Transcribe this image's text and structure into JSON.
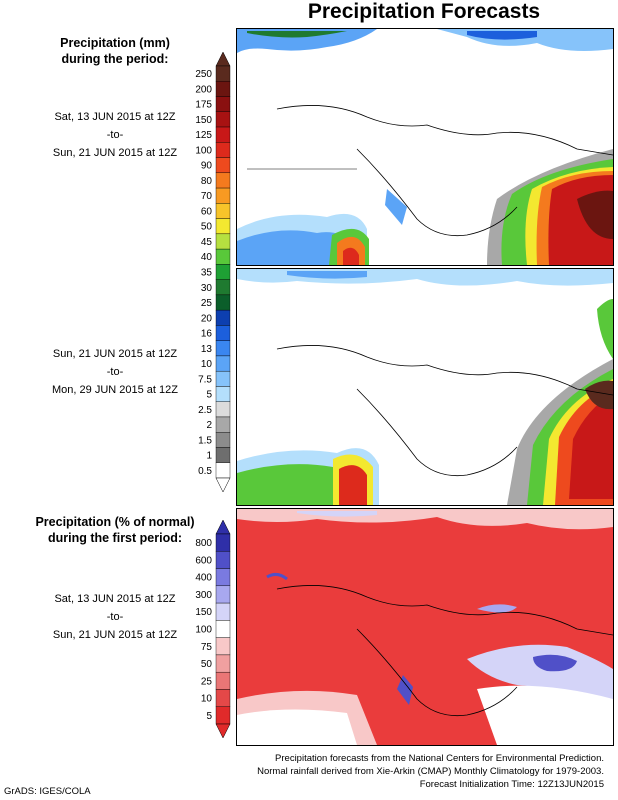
{
  "title": "Precipitation Forecasts",
  "top_heading": [
    "Precipitation (mm)",
    "during the period:"
  ],
  "period1": [
    "Sat, 13 JUN 2015 at 12Z",
    "-to-",
    "Sun, 21 JUN 2015 at 12Z"
  ],
  "period2": [
    "Sun, 21 JUN 2015 at 12Z",
    "-to-",
    "Mon, 29 JUN 2015 at 12Z"
  ],
  "bottom_heading": [
    "Precipitation (% of normal)",
    "during the first period:"
  ],
  "period3": [
    "Sat, 13 JUN 2015 at 12Z",
    "-to-",
    "Sun, 21 JUN 2015 at 12Z"
  ],
  "mm_scale": {
    "labels": [
      "250",
      "200",
      "175",
      "150",
      "125",
      "100",
      "90",
      "80",
      "70",
      "60",
      "50",
      "45",
      "40",
      "35",
      "30",
      "25",
      "20",
      "16",
      "13",
      "10",
      "7.5",
      "5",
      "2.5",
      "2",
      "1.5",
      "1",
      "0.5"
    ],
    "colors": [
      "#5a2a1e",
      "#6b1510",
      "#8a1010",
      "#a81212",
      "#c81818",
      "#dd2a1c",
      "#ee4a1e",
      "#f47a1e",
      "#f89a22",
      "#f7c42a",
      "#f3e830",
      "#b6e040",
      "#59c83a",
      "#1ea034",
      "#1f7a30",
      "#0b5e2a",
      "#0d3fb0",
      "#1c5fdc",
      "#3a86f0",
      "#5ba4f6",
      "#86c3fa",
      "#b4dffc",
      "#dcdcdc",
      "#a8a8a8",
      "#8c8c8c",
      "#6e6e6e",
      "#ffffff"
    ]
  },
  "pct_scale": {
    "labels": [
      "800",
      "600",
      "400",
      "300",
      "150",
      "100",
      "75",
      "50",
      "25",
      "10",
      "5"
    ],
    "colors": [
      "#2f2fa8",
      "#5050c8",
      "#7a7ae0",
      "#a8a8ef",
      "#d4d4f8",
      "#ffffff",
      "#f8c8c8",
      "#f0a0a0",
      "#ea7676",
      "#e44848",
      "#e02a2a"
    ]
  },
  "footer": [
    "Precipitation forecasts from the National Centers for Environmental Prediction.",
    "Normal rainfall derived from Xie-Arkin (CMAP) Monthly Climatology for 1979-2003.",
    "Forecast Initialization Time: 12Z13JUN2015"
  ],
  "credit": "GrADS: IGES/COLA",
  "colors": {
    "map_bg": "#ffffff",
    "border": "#000000",
    "pct_fill": "#ea3c3c"
  }
}
